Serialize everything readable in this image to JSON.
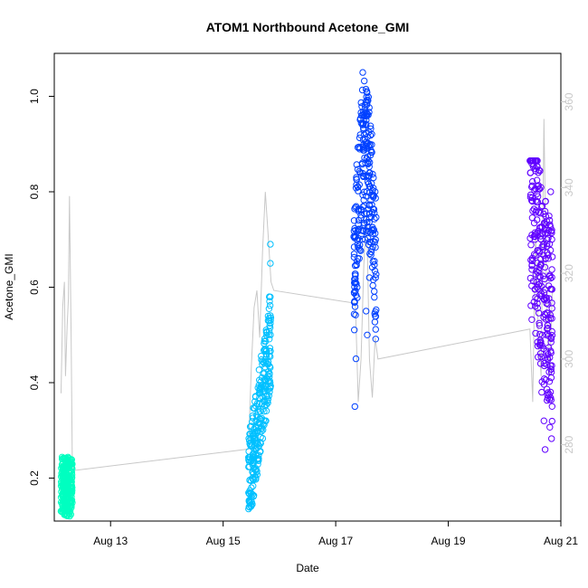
{
  "chart_data": {
    "type": "scatter",
    "title": "ATOM1 Northbound Acetone_GMI",
    "xlabel": "Date",
    "ylabel": "Acetone_GMI",
    "x_ticks": [
      "Aug 13",
      "Aug 15",
      "Aug 17",
      "Aug 19",
      "Aug 21"
    ],
    "x_tick_values": [
      13,
      15,
      17,
      19,
      21
    ],
    "xlim": [
      12.0,
      21.0
    ],
    "ylim": [
      0.11,
      1.09
    ],
    "y_ticks": [
      0.2,
      0.4,
      0.6,
      0.8,
      1.0
    ],
    "y_tick_labels": [
      "0.2",
      "0.4",
      "0.6",
      "0.8",
      "1.0"
    ],
    "y2lim": [
      262.2,
      371.3
    ],
    "y2_ticks": [
      280,
      300,
      320,
      340,
      360
    ],
    "y2_tick_labels": [
      "280",
      "300",
      "320",
      "340",
      "360"
    ],
    "series": [
      {
        "color": "#00ffc0",
        "x_range": [
          12.12,
          12.32
        ],
        "y_range": [
          0.12,
          0.245
        ],
        "points": [
          [
            12.14,
            0.24
          ],
          [
            12.16,
            0.22
          ],
          [
            12.18,
            0.2
          ],
          [
            12.2,
            0.23
          ],
          [
            12.22,
            0.18
          ],
          [
            12.24,
            0.16
          ],
          [
            12.26,
            0.21
          ],
          [
            12.28,
            0.14
          ],
          [
            12.3,
            0.19
          ],
          [
            12.15,
            0.13
          ],
          [
            12.19,
            0.15
          ],
          [
            12.23,
            0.24
          ],
          [
            12.27,
            0.125
          ],
          [
            12.31,
            0.23
          ]
        ]
      },
      {
        "color": "#00c0ff",
        "x_range": [
          15.45,
          15.85
        ],
        "y_range": [
          0.13,
          0.69
        ],
        "points": [
          [
            15.46,
            0.14
          ],
          [
            15.5,
            0.18
          ],
          [
            15.54,
            0.22
          ],
          [
            15.58,
            0.26
          ],
          [
            15.62,
            0.3
          ],
          [
            15.66,
            0.34
          ],
          [
            15.7,
            0.38
          ],
          [
            15.74,
            0.36
          ],
          [
            15.78,
            0.44
          ],
          [
            15.8,
            0.53
          ],
          [
            15.82,
            0.58
          ],
          [
            15.84,
            0.65
          ],
          [
            15.84,
            0.69
          ],
          [
            15.76,
            0.32
          ]
        ]
      },
      {
        "color": "#0040ff",
        "x_range": [
          17.32,
          17.72
        ],
        "y_range": [
          0.35,
          1.055
        ],
        "points": [
          [
            17.34,
            0.35
          ],
          [
            17.36,
            0.45
          ],
          [
            17.38,
            0.6
          ],
          [
            17.4,
            0.72
          ],
          [
            17.42,
            0.66
          ],
          [
            17.44,
            0.84
          ],
          [
            17.46,
            0.96
          ],
          [
            17.48,
            1.05
          ],
          [
            17.5,
            0.9
          ],
          [
            17.52,
            0.7
          ],
          [
            17.54,
            0.55
          ],
          [
            17.56,
            0.5
          ],
          [
            17.6,
            0.62
          ],
          [
            17.64,
            0.68
          ],
          [
            17.68,
            0.72
          ],
          [
            17.7,
            0.8
          ]
        ]
      },
      {
        "color": "#6000ff",
        "x_range": [
          20.45,
          20.85
        ],
        "y_range": [
          0.24,
          0.865
        ],
        "points": [
          [
            20.46,
            0.84
          ],
          [
            20.5,
            0.76
          ],
          [
            20.54,
            0.7
          ],
          [
            20.58,
            0.6
          ],
          [
            20.62,
            0.52
          ],
          [
            20.64,
            0.44
          ],
          [
            20.66,
            0.38
          ],
          [
            20.7,
            0.32
          ],
          [
            20.72,
            0.26
          ],
          [
            20.74,
            0.5
          ],
          [
            20.78,
            0.66
          ],
          [
            20.8,
            0.74
          ],
          [
            20.82,
            0.8
          ],
          [
            20.84,
            0.72
          ],
          [
            20.6,
            0.84
          ]
        ]
      }
    ],
    "secondary_series": {
      "color": "#c8c8c8",
      "points": [
        [
          12.12,
          292
        ],
        [
          12.15,
          312
        ],
        [
          12.18,
          318
        ],
        [
          12.2,
          296
        ],
        [
          12.23,
          308
        ],
        [
          12.25,
          314
        ],
        [
          12.27,
          338
        ],
        [
          12.3,
          304
        ],
        [
          12.32,
          276
        ],
        [
          12.35,
          274
        ],
        [
          15.45,
          279
        ],
        [
          15.5,
          298
        ],
        [
          15.55,
          312
        ],
        [
          15.6,
          316
        ],
        [
          15.65,
          305
        ],
        [
          15.7,
          325
        ],
        [
          15.75,
          339
        ],
        [
          15.8,
          329
        ],
        [
          15.85,
          318
        ],
        [
          15.9,
          316
        ],
        [
          17.35,
          313
        ],
        [
          17.4,
          290
        ],
        [
          17.45,
          300
        ],
        [
          17.5,
          322
        ],
        [
          17.55,
          335
        ],
        [
          17.6,
          300
        ],
        [
          17.65,
          291
        ],
        [
          17.7,
          305
        ],
        [
          17.75,
          300
        ],
        [
          20.45,
          307
        ],
        [
          20.5,
          290
        ],
        [
          20.55,
          330
        ],
        [
          20.6,
          305
        ],
        [
          20.65,
          296
        ],
        [
          20.7,
          356
        ],
        [
          20.75,
          310
        ],
        [
          20.8,
          296
        ],
        [
          20.85,
          317
        ]
      ]
    }
  }
}
